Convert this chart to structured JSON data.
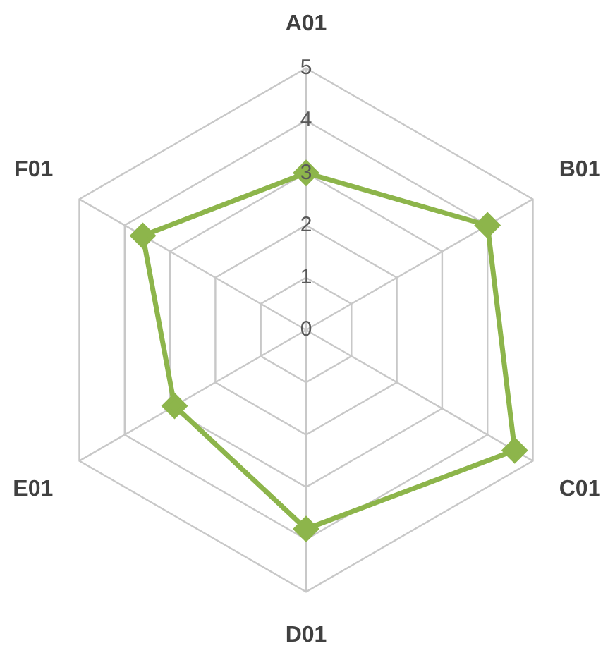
{
  "chart_data": {
    "type": "radar",
    "categories": [
      "A01",
      "B01",
      "C01",
      "D01",
      "E01",
      "F01"
    ],
    "series": [
      {
        "color": "#8db54b",
        "values": [
          3,
          4,
          4.6,
          3.8,
          2.9,
          3.6
        ]
      }
    ],
    "ylim": [
      0,
      5
    ],
    "yticks": [
      0,
      1,
      2,
      3,
      4,
      5
    ],
    "grid": true,
    "legend": false,
    "marker": "diamond"
  }
}
